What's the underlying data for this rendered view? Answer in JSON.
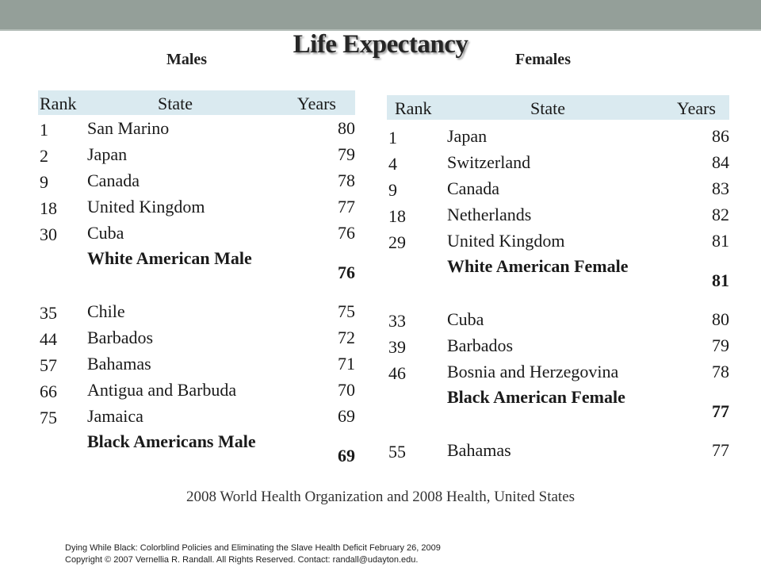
{
  "slide": {
    "title": "Life Expectancy",
    "males_label": "Males",
    "females_label": "Females",
    "source": "2008 World Health Organization and 2008 Health, United States",
    "footer_line1": "Dying While Black: Colorblind Policies and Eliminating the Slave Health Deficit  February 26, 2009",
    "footer_line2": "Copyright © 2007 Vernellia R. Randall.  All Rights Reserved.  Contact: randall@udayton.edu.",
    "colors": {
      "top_bar": "#949f99",
      "header_fill": "#daeaf0"
    }
  },
  "males": {
    "headers": {
      "rank": "Rank",
      "state": "State",
      "years": "Years"
    },
    "rows": [
      {
        "rank": "1",
        "state": "San Marino",
        "years": "80"
      },
      {
        "rank": "2",
        "state": "Japan",
        "years": "79"
      },
      {
        "rank": "9",
        "state": "Canada",
        "years": "78"
      },
      {
        "rank": "18",
        "state": "United Kingdom",
        "years": "77"
      },
      {
        "rank": "30",
        "state": "Cuba",
        "years": "76"
      },
      {
        "rank": "",
        "state": "White American Male",
        "years": "76",
        "highlight": true
      },
      {
        "rank": "35",
        "state": "Chile",
        "years": "75"
      },
      {
        "rank": "44",
        "state": "Barbados",
        "years": "72"
      },
      {
        "rank": "57",
        "state": "Bahamas",
        "years": "71"
      },
      {
        "rank": "66",
        "state": "Antigua and Barbuda",
        "years": "70"
      },
      {
        "rank": "75",
        "state": "Jamaica",
        "years": "69"
      },
      {
        "rank": "",
        "state": "Black Americans Male",
        "years": "69",
        "highlight": true
      }
    ]
  },
  "females": {
    "headers": {
      "rank": "Rank",
      "state": "State",
      "years": "Years"
    },
    "rows": [
      {
        "rank": "1",
        "state": "Japan",
        "years": "86"
      },
      {
        "rank": "4",
        "state": "Switzerland",
        "years": "84"
      },
      {
        "rank": "9",
        "state": "Canada",
        "years": "83"
      },
      {
        "rank": "18",
        "state": "Netherlands",
        "years": "82"
      },
      {
        "rank": "29",
        "state": "United Kingdom",
        "years": "81"
      },
      {
        "rank": "",
        "state": "White American Female",
        "years": "81",
        "highlight": true
      },
      {
        "rank": "33",
        "state": "Cuba",
        "years": "80"
      },
      {
        "rank": "39",
        "state": "Barbados",
        "years": "79"
      },
      {
        "rank": "46",
        "state": "Bosnia and Herzegovina",
        "years": "78"
      },
      {
        "rank": "",
        "state": "Black American Female",
        "years": "77",
        "highlight": true
      },
      {
        "rank": "55",
        "state": "Bahamas",
        "years": "77"
      }
    ]
  }
}
